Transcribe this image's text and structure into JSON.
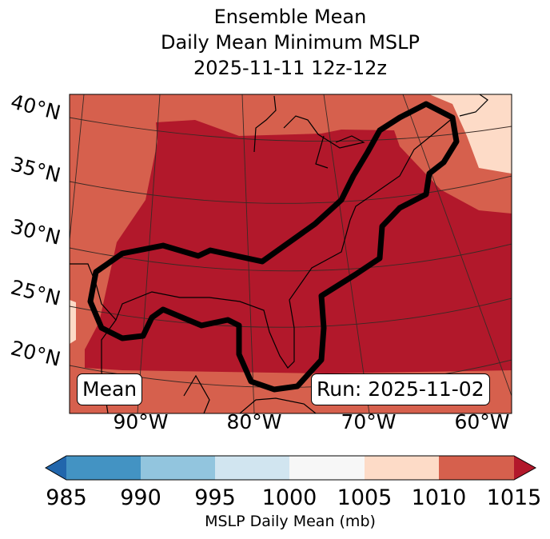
{
  "title": {
    "line1": "Ensemble Mean",
    "line2": "Daily Mean Minimum MSLP",
    "line3": "2025-11-11 12z-12z"
  },
  "map": {
    "lat_labels": [
      "40°N",
      "35°N",
      "30°N",
      "25°N",
      "20°N"
    ],
    "lon_labels": [
      "90°W",
      "80°W",
      "70°W",
      "60°W"
    ],
    "mean_label": "Mean",
    "run_label": "Run: 2025-11-02"
  },
  "colorbar": {
    "label": "MSLP Daily Mean (mb)",
    "ticks": [
      "985",
      "990",
      "995",
      "1000",
      "1005",
      "1010",
      "1015"
    ],
    "colors": [
      "#2166ac",
      "#4393c3",
      "#92c5de",
      "#d1e5f0",
      "#f7f7f7",
      "#fddbc7",
      "#d6604d",
      "#b2182b"
    ]
  }
}
